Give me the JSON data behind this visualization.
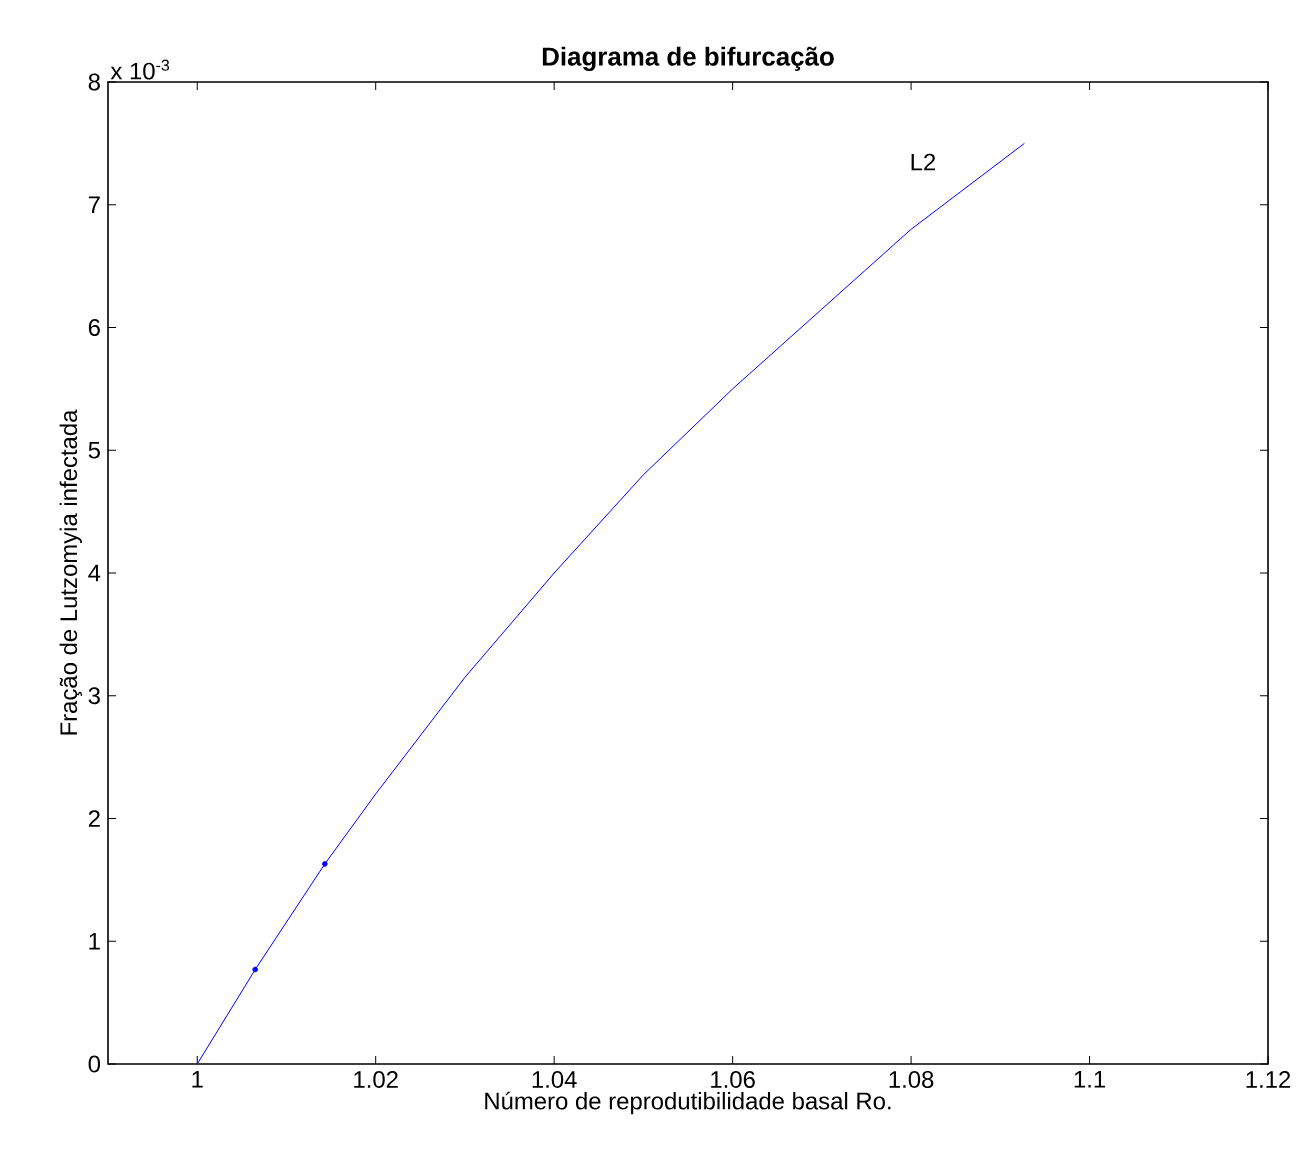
{
  "chart_data": {
    "type": "line",
    "title": "Diagrama de bifurcação",
    "xlabel": "Número de reprodutibilidade basal Ro.",
    "ylabel": "Fração de Lutzomyia infectada",
    "annotations": [
      "x 10$^{-3}$",
      "L2"
    ],
    "xlim": [
      0.99,
      1.12
    ],
    "xticks": [
      1,
      1.02,
      1.04,
      1.06,
      1.08,
      1.1,
      1.12
    ],
    "ylim": [
      0,
      8
    ],
    "yticks": [
      0,
      1,
      2,
      3,
      4,
      5,
      6,
      7,
      8
    ],
    "grid": false,
    "series": [
      {
        "color": "#0000ff",
        "marker": "none",
        "x": [
          1.0,
          1.0065,
          1.0143,
          1.02,
          1.03,
          1.04,
          1.05,
          1.06,
          1.07,
          1.08,
          1.0927
        ],
        "values": [
          0,
          0.77,
          1.63,
          2.2,
          3.15,
          4.0,
          4.8,
          5.5,
          6.15,
          6.8,
          7.5
        ]
      },
      {
        "type": "scatter",
        "color": "#0000ff",
        "marker": "circle",
        "x": [
          1.0065,
          1.0143
        ],
        "values": [
          0.77,
          1.63
        ]
      }
    ]
  }
}
